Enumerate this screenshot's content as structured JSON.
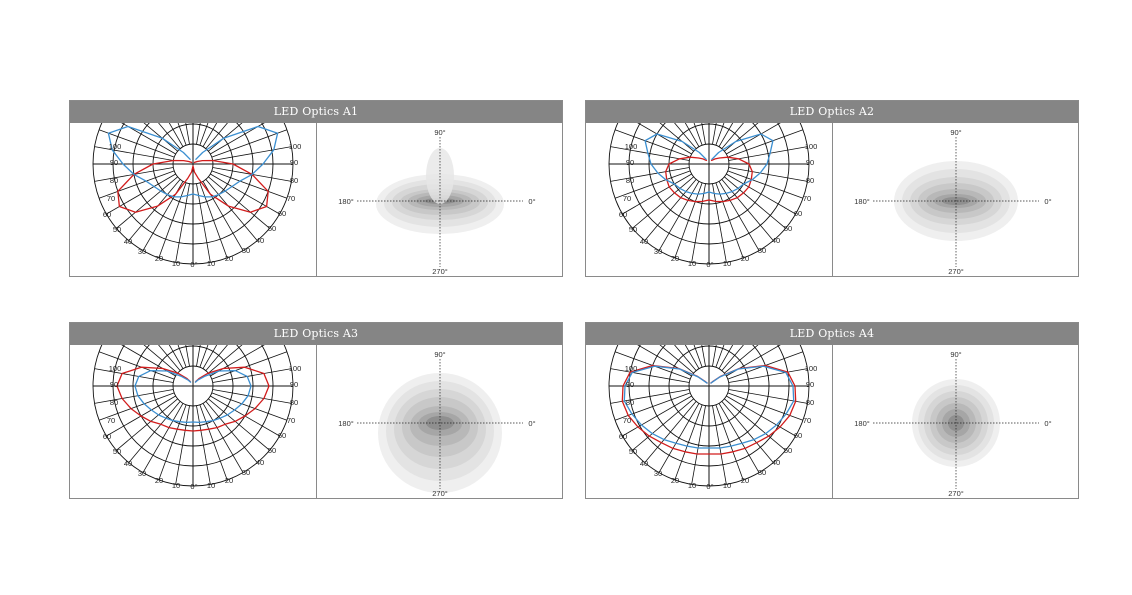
{
  "chart_data": [
    {
      "type": "polar",
      "title": "LED Optics A1",
      "radial_ticks": [
        "100",
        "90",
        "80",
        "70",
        "60",
        "50",
        "40",
        "30",
        "20",
        "10",
        "0°"
      ],
      "series": [
        {
          "color": "#d21c1c",
          "r": [
            0.02,
            0.08,
            0.15,
            0.35,
            0.55,
            0.75,
            0.85,
            0.8,
            0.6,
            0.4,
            0.2,
            0.1,
            0.05,
            0.03,
            0.02,
            0.02
          ]
        },
        {
          "color": "#3b8fd1",
          "r": [
            0.3,
            0.32,
            0.35,
            0.38,
            0.4,
            0.42,
            0.45,
            0.5,
            0.6,
            0.7,
            0.82,
            0.9,
            0.75,
            0.4,
            0.15,
            0.05
          ]
        }
      ],
      "isolux_labels": {
        "top": "90°",
        "left": "180°",
        "right": "0°",
        "bottom": "270°"
      },
      "isolux_shape": "wide"
    },
    {
      "type": "polar",
      "title": "LED Optics A2",
      "radial_ticks": [
        "100",
        "90",
        "80",
        "70",
        "60",
        "50",
        "40",
        "30",
        "20",
        "10",
        "0°"
      ],
      "series": [
        {
          "color": "#d21c1c",
          "r": [
            0.36,
            0.38,
            0.4,
            0.42,
            0.44,
            0.45,
            0.46,
            0.45,
            0.44,
            0.4,
            0.3,
            0.2,
            0.12,
            0.08,
            0.05,
            0.04
          ]
        },
        {
          "color": "#3b8fd1",
          "r": [
            0.28,
            0.3,
            0.32,
            0.34,
            0.36,
            0.38,
            0.4,
            0.46,
            0.52,
            0.58,
            0.62,
            0.68,
            0.6,
            0.35,
            0.15,
            0.05
          ]
        }
      ],
      "isolux_labels": {
        "top": "90°",
        "left": "180°",
        "right": "0°",
        "bottom": "270°"
      },
      "isolux_shape": "medium"
    },
    {
      "type": "polar",
      "title": "LED Optics A3",
      "radial_ticks": [
        "100",
        "90",
        "80",
        "70",
        "60",
        "50",
        "40",
        "30",
        "20",
        "10",
        "0°"
      ],
      "series": [
        {
          "color": "#d21c1c",
          "r": [
            0.45,
            0.45,
            0.46,
            0.48,
            0.5,
            0.55,
            0.6,
            0.66,
            0.72,
            0.76,
            0.72,
            0.55,
            0.35,
            0.2,
            0.1,
            0.05
          ]
        },
        {
          "color": "#3b8fd1",
          "r": [
            0.36,
            0.37,
            0.38,
            0.4,
            0.42,
            0.45,
            0.48,
            0.52,
            0.56,
            0.58,
            0.55,
            0.45,
            0.3,
            0.15,
            0.08,
            0.04
          ]
        }
      ],
      "isolux_labels": {
        "top": "90°",
        "left": "180°",
        "right": "0°",
        "bottom": "270°"
      },
      "isolux_shape": "tall"
    },
    {
      "type": "polar",
      "title": "LED Optics A4",
      "radial_ticks": [
        "100",
        "90",
        "80",
        "70",
        "60",
        "50",
        "40",
        "30",
        "20",
        "10",
        "0°"
      ],
      "series": [
        {
          "color": "#d21c1c",
          "r": [
            0.68,
            0.69,
            0.7,
            0.72,
            0.74,
            0.78,
            0.82,
            0.86,
            0.88,
            0.86,
            0.8,
            0.6,
            0.35,
            0.15,
            0.06,
            0.03
          ]
        },
        {
          "color": "#3b8fd1",
          "r": [
            0.62,
            0.63,
            0.64,
            0.66,
            0.7,
            0.74,
            0.78,
            0.82,
            0.86,
            0.84,
            0.78,
            0.58,
            0.34,
            0.14,
            0.05,
            0.03
          ]
        }
      ],
      "isolux_labels": {
        "top": "90°",
        "left": "180°",
        "right": "0°",
        "bottom": "270°"
      },
      "isolux_shape": "round"
    }
  ]
}
